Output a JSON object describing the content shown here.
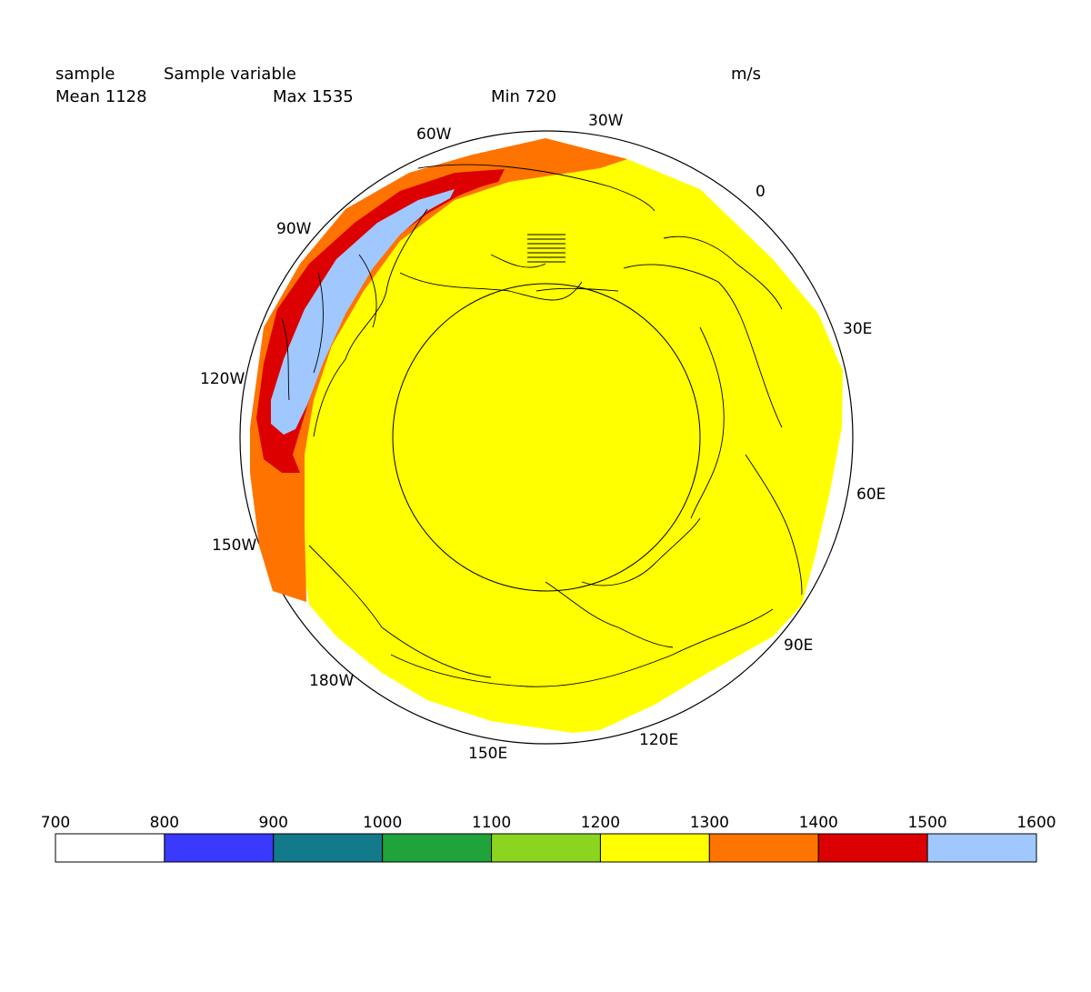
{
  "header": {
    "var_name": "sample",
    "var_long_name": "Sample variable",
    "units": "m/s",
    "mean": "Mean 1128",
    "max": "Max 1535",
    "min": "Min 720"
  },
  "map": {
    "projection": "polar stereographic",
    "fill_color": "#ffff00",
    "longitude_labels": [
      "60W",
      "30W",
      "0",
      "90W",
      "30E",
      "120W",
      "60E",
      "150W",
      "90E",
      "180W",
      "120E",
      "150E"
    ]
  },
  "colorbar": {
    "levels": [
      "700",
      "800",
      "900",
      "1000",
      "1100",
      "1200",
      "1300",
      "1400",
      "1500",
      "1600"
    ],
    "colors": [
      "#ffffff",
      "#3a3aff",
      "#127a8a",
      "#1fa33a",
      "#8bd41f",
      "#ffff00",
      "#ff7300",
      "#dd0000",
      "#a0c8ff"
    ]
  }
}
